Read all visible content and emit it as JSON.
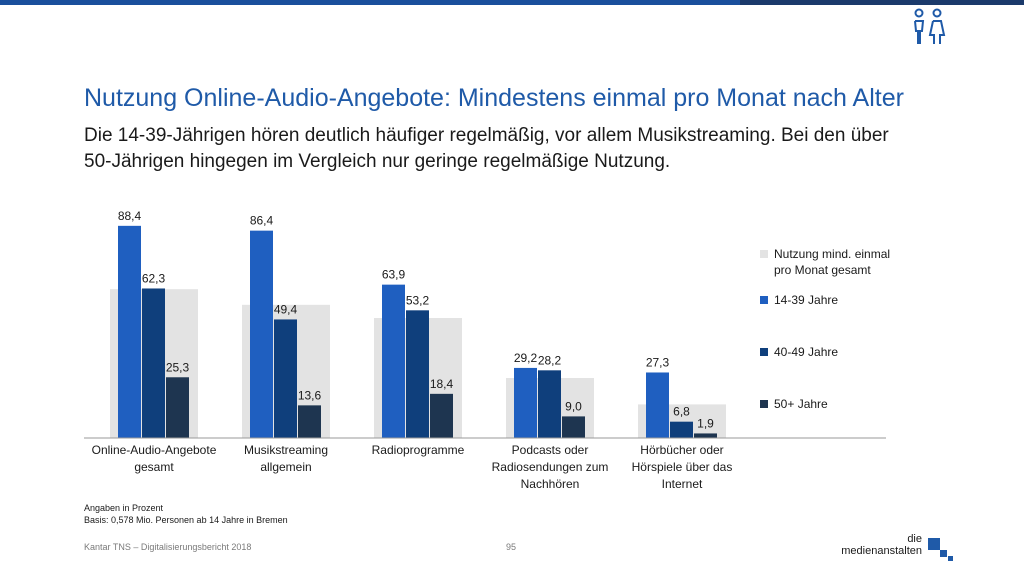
{
  "header": {
    "title": "Nutzung Online-Audio-Angebote: Mindestens einmal pro Monat nach Alter",
    "subtitle": "Die 14-39-Jährigen hören deutlich häufiger regelmäßig, vor allem Musikstreaming. Bei den über 50-Jährigen hingegen im Vergleich nur geringe regelmäßige Nutzung."
  },
  "icons": {
    "top_right": "people-icon"
  },
  "chart_data": {
    "type": "bar",
    "categories": [
      "Online-Audio-Angebote gesamt",
      "Musikstreaming allgemein",
      "Radioprogramme",
      "Podcasts oder Radiosendungen zum Nachhören",
      "Hörbücher oder Hörspiele über das Internet"
    ],
    "series": [
      {
        "name": "Nutzung mind. einmal pro Monat gesamt",
        "values": [
          62.0,
          55.5,
          50.0,
          25.0,
          14.0
        ],
        "color": "#e3e3e3",
        "labels_shown": false
      },
      {
        "name": "14-39 Jahre",
        "values": [
          88.4,
          86.4,
          63.9,
          29.2,
          27.3
        ],
        "labels": [
          "88,4",
          "86,4",
          "63,9",
          "29,2",
          "27,3"
        ],
        "color": "#1f5fc0"
      },
      {
        "name": "40-49 Jahre",
        "values": [
          62.3,
          49.4,
          53.2,
          28.2,
          6.8
        ],
        "labels": [
          "62,3",
          "49,4",
          "53,2",
          "28,2",
          "6,8"
        ],
        "color": "#0f3f7c"
      },
      {
        "name": "50+ Jahre",
        "values": [
          25.3,
          13.6,
          18.4,
          9.0,
          1.9
        ],
        "labels": [
          "25,3",
          "13,6",
          "18,4",
          "9,0",
          "1,9"
        ],
        "color": "#1e3550"
      }
    ],
    "ylim": [
      0,
      100
    ],
    "grid": false,
    "legend_position": "right"
  },
  "notes": {
    "line1": "Angaben in Prozent",
    "line2": "Basis: 0,578 Mio. Personen ab 14 Jahre in Bremen"
  },
  "footer": {
    "source": "Kantar TNS – Digitalisierungsbericht 2018",
    "page": "95",
    "brand_line1": "die",
    "brand_line2": "medienanstalten"
  }
}
